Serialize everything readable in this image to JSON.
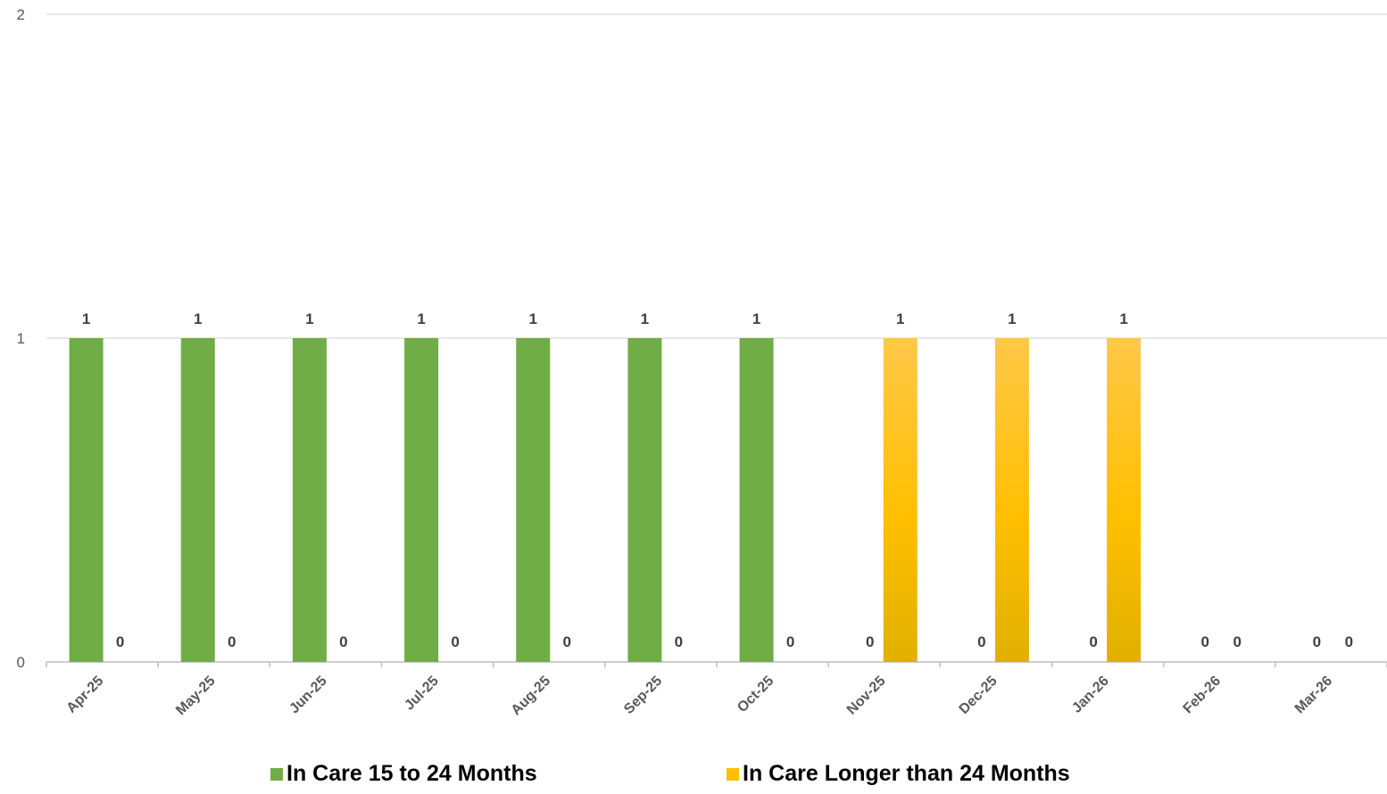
{
  "chart_data": {
    "type": "bar",
    "categories": [
      "Apr-25",
      "May-25",
      "Jun-25",
      "Jul-25",
      "Aug-25",
      "Sep-25",
      "Oct-25",
      "Nov-25",
      "Dec-25",
      "Jan-26",
      "Feb-26",
      "Mar-26"
    ],
    "series": [
      {
        "name": "In Care 15 to 24 Months",
        "values": [
          1,
          1,
          1,
          1,
          1,
          1,
          1,
          0,
          0,
          0,
          0,
          0
        ],
        "color": "#70AD47"
      },
      {
        "name": "In Care Longer than 24 Months",
        "values": [
          0,
          0,
          0,
          0,
          0,
          0,
          0,
          1,
          1,
          1,
          0,
          0
        ],
        "color": "#FFC000"
      }
    ],
    "ylim": [
      0,
      2
    ],
    "yticks": [
      0,
      1,
      2
    ],
    "grid": true,
    "legend_position": "bottom",
    "data_labels": true
  }
}
